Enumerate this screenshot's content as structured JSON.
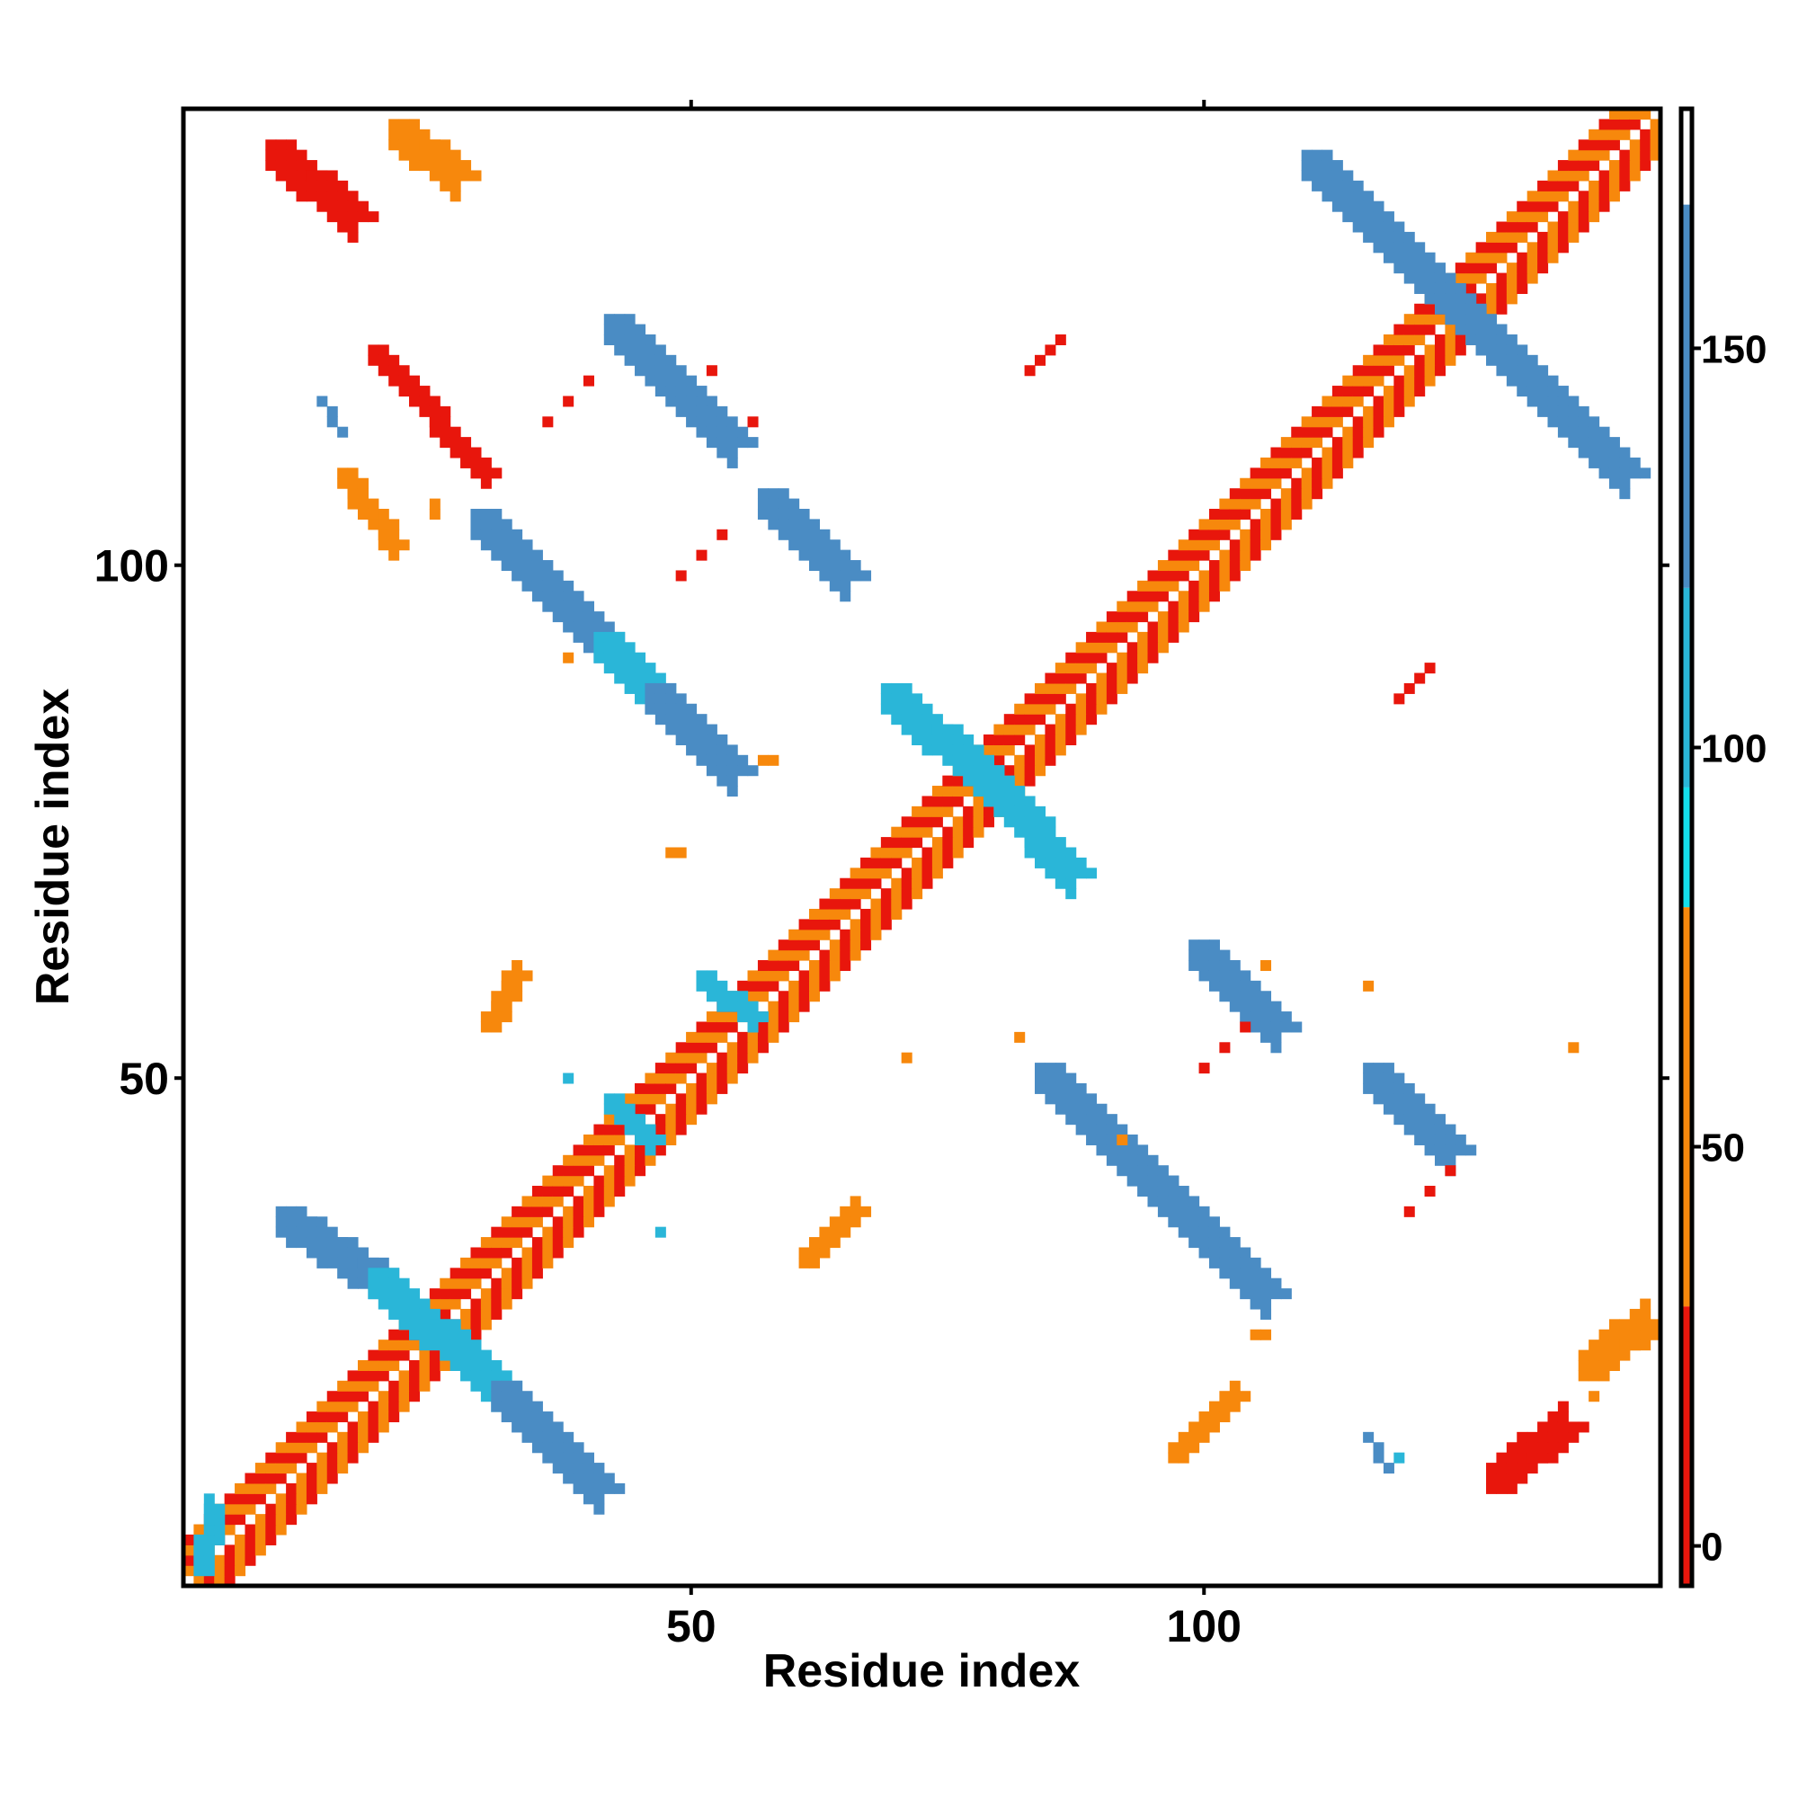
{
  "chart_data": {
    "type": "heatmap",
    "title": "",
    "xlabel": "Residue index",
    "ylabel": "Residue index",
    "xlim": [
      1,
      144
    ],
    "ylim": [
      1,
      144
    ],
    "x_ticks": [
      50,
      100
    ],
    "y_ticks": [
      50,
      100
    ],
    "colorbar": {
      "range": [
        -5,
        180
      ],
      "ticks": [
        0,
        50,
        100,
        150
      ],
      "bands": [
        {
          "from": -5,
          "to": 30,
          "color": "#e8160c"
        },
        {
          "from": 30,
          "to": 80,
          "color": "#f7880c"
        },
        {
          "from": 80,
          "to": 95,
          "color": "#14e0ec"
        },
        {
          "from": 95,
          "to": 120,
          "color": "#2ab6d8"
        },
        {
          "from": 120,
          "to": 168,
          "color": "#4a8cc4"
        },
        {
          "from": 168,
          "to": 180,
          "color": "#ffffff"
        }
      ]
    },
    "grid": false,
    "diagonal": {
      "range": [
        1,
        144
      ],
      "pattern": [
        "#f7880c",
        "#e8160c"
      ]
    },
    "segments": [
      {
        "from": [
          2,
          2
        ],
        "to": [
          3,
          8
        ],
        "color": "#2ab6d8",
        "width": 2
      },
      {
        "from": [
          9,
          141
        ],
        "to": [
          17,
          134
        ],
        "color": "#e8160c",
        "width": 3
      },
      {
        "from": [
          21,
          143
        ],
        "to": [
          27,
          138
        ],
        "color": "#f7880c",
        "width": 3
      },
      {
        "from": [
          10,
          37
        ],
        "to": [
          19,
          31
        ],
        "color": "#4a8cc4",
        "width": 3
      },
      {
        "from": [
          19,
          31
        ],
        "to": [
          31,
          20
        ],
        "color": "#2ab6d8",
        "width": 3
      },
      {
        "from": [
          31,
          20
        ],
        "to": [
          41,
          10
        ],
        "color": "#4a8cc4",
        "width": 3
      },
      {
        "from": [
          19,
          121
        ],
        "to": [
          30,
          109
        ],
        "color": "#e8160c",
        "width": 2
      },
      {
        "from": [
          16,
          109
        ],
        "to": [
          21,
          102
        ],
        "color": "#f7880c",
        "width": 2
      },
      {
        "from": [
          29,
          105
        ],
        "to": [
          41,
          93
        ],
        "color": "#4a8cc4",
        "width": 3
      },
      {
        "from": [
          41,
          93
        ],
        "to": [
          46,
          88
        ],
        "color": "#2ab6d8",
        "width": 3
      },
      {
        "from": [
          46,
          88
        ],
        "to": [
          54,
          80
        ],
        "color": "#4a8cc4",
        "width": 3
      },
      {
        "from": [
          42,
          124
        ],
        "to": [
          54,
          112
        ],
        "color": "#4a8cc4",
        "width": 3
      },
      {
        "from": [
          57,
          107
        ],
        "to": [
          65,
          99
        ],
        "color": "#4a8cc4",
        "width": 3
      },
      {
        "from": [
          69,
          88
        ],
        "to": [
          78,
          80
        ],
        "color": "#2ab6d8",
        "width": 3
      },
      {
        "from": [
          78,
          80
        ],
        "to": [
          87,
          70
        ],
        "color": "#2ab6d8",
        "width": 3
      },
      {
        "from": [
          51,
          60
        ],
        "to": [
          56,
          56
        ],
        "color": "#2ab6d8",
        "width": 2
      },
      {
        "from": [
          42,
          48
        ],
        "to": [
          46,
          44
        ],
        "color": "#2ab6d8",
        "width": 2
      },
      {
        "from": [
          84,
          51
        ],
        "to": [
          95,
          40
        ],
        "color": "#4a8cc4",
        "width": 3
      },
      {
        "from": [
          95,
          40
        ],
        "to": [
          106,
          29
        ],
        "color": "#4a8cc4",
        "width": 3
      },
      {
        "from": [
          99,
          63
        ],
        "to": [
          107,
          55
        ],
        "color": "#4a8cc4",
        "width": 3
      },
      {
        "from": [
          116,
          51
        ],
        "to": [
          124,
          43
        ],
        "color": "#4a8cc4",
        "width": 3
      },
      {
        "from": [
          110,
          140
        ],
        "to": [
          127,
          123
        ],
        "color": "#4a8cc4",
        "width": 3
      },
      {
        "from": [
          127,
          123
        ],
        "to": [
          141,
          109
        ],
        "color": "#4a8cc4",
        "width": 3
      },
      {
        "from": [
          128,
          10
        ],
        "to": [
          135,
          16
        ],
        "color": "#e8160c",
        "width": 3
      },
      {
        "from": [
          137,
          21
        ],
        "to": [
          143,
          26
        ],
        "color": "#f7880c",
        "width": 3
      },
      {
        "from": [
          97,
          13
        ],
        "to": [
          103,
          19
        ],
        "color": "#f7880c",
        "width": 2
      },
      {
        "from": [
          61,
          32
        ],
        "to": [
          66,
          37
        ],
        "color": "#f7880c",
        "width": 2
      },
      {
        "from": [
          30,
          55
        ],
        "to": [
          33,
          60
        ],
        "color": "#f7880c",
        "width": 2
      },
      {
        "from": [
          83,
          119
        ],
        "to": [
          86,
          122
        ],
        "color": "#e8160c",
        "width": 1
      },
      {
        "from": [
          119,
          87
        ],
        "to": [
          122,
          90
        ],
        "color": "#e8160c",
        "width": 1
      },
      {
        "from": [
          116,
          15
        ],
        "to": [
          118,
          12
        ],
        "color": "#4a8cc4",
        "width": 1
      },
      {
        "from": [
          14,
          116
        ],
        "to": [
          16,
          113
        ],
        "color": "#4a8cc4",
        "width": 1
      }
    ],
    "points": [
      [
        47,
        35,
        "#2ab6d8"
      ],
      [
        38,
        50,
        "#2ab6d8"
      ],
      [
        25,
        105,
        "#f7880c"
      ],
      [
        25,
        106,
        "#f7880c"
      ],
      [
        52,
        119,
        "#e8160c"
      ],
      [
        56,
        114,
        "#e8160c"
      ],
      [
        49,
        99,
        "#e8160c"
      ],
      [
        51,
        101,
        "#e8160c"
      ],
      [
        53,
        103,
        "#e8160c"
      ],
      [
        36,
        114,
        "#e8160c"
      ],
      [
        38,
        116,
        "#e8160c"
      ],
      [
        40,
        118,
        "#e8160c"
      ],
      [
        38,
        91,
        "#f7880c"
      ],
      [
        57,
        81,
        "#f7880c"
      ],
      [
        58,
        81,
        "#f7880c"
      ],
      [
        48,
        72,
        "#f7880c"
      ],
      [
        49,
        72,
        "#f7880c"
      ],
      [
        71,
        52,
        "#f7880c"
      ],
      [
        82,
        54,
        "#f7880c"
      ],
      [
        92,
        44,
        "#f7880c"
      ],
      [
        100,
        51,
        "#e8160c"
      ],
      [
        102,
        53,
        "#e8160c"
      ],
      [
        104,
        55,
        "#e8160c"
      ],
      [
        106,
        61,
        "#f7880c"
      ],
      [
        116,
        59,
        "#f7880c"
      ],
      [
        136,
        53,
        "#f7880c"
      ],
      [
        106,
        25,
        "#f7880c"
      ],
      [
        105,
        25,
        "#f7880c"
      ],
      [
        120,
        37,
        "#e8160c"
      ],
      [
        122,
        39,
        "#e8160c"
      ],
      [
        124,
        41,
        "#e8160c"
      ],
      [
        138,
        19,
        "#f7880c"
      ],
      [
        119,
        13,
        "#2ab6d8"
      ]
    ]
  }
}
